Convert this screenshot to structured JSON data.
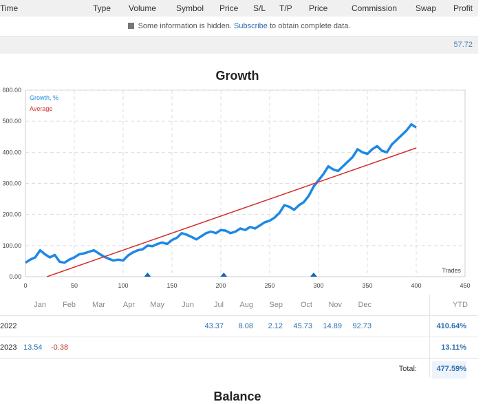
{
  "trades_table": {
    "columns": [
      "Time",
      "Type",
      "Volume",
      "Symbol",
      "Price",
      "S/L",
      "T/P",
      "Price",
      "Commission",
      "Swap",
      "Profit"
    ],
    "notice_prefix": "Some information is hidden.",
    "notice_link": "Subscribe",
    "notice_suffix": "to obtain complete data.",
    "total_profit": "57.72"
  },
  "growth": {
    "title": "Growth",
    "chart_data": {
      "type": "line",
      "xlabel": "Trades",
      "ylabel": "",
      "xlim": [
        0,
        450
      ],
      "ylim": [
        0,
        600
      ],
      "x_ticks": [
        "0",
        "50",
        "100",
        "150",
        "200",
        "250",
        "300",
        "350",
        "400",
        "450"
      ],
      "y_ticks": [
        "0.00",
        "100.00",
        "200.00",
        "300.00",
        "400.00",
        "500.00",
        "600.00"
      ],
      "grid": true,
      "legend_placement": "top-left",
      "series": [
        {
          "name": "Growth, %",
          "color": "#1e88e5",
          "x": [
            0,
            5,
            10,
            15,
            20,
            25,
            30,
            35,
            40,
            45,
            50,
            55,
            60,
            65,
            70,
            75,
            80,
            85,
            90,
            95,
            100,
            105,
            110,
            115,
            120,
            125,
            130,
            135,
            140,
            145,
            150,
            155,
            160,
            165,
            170,
            175,
            180,
            185,
            190,
            195,
            200,
            205,
            210,
            215,
            220,
            225,
            230,
            235,
            240,
            245,
            250,
            255,
            260,
            265,
            270,
            275,
            280,
            285,
            290,
            295,
            300,
            305,
            310,
            315,
            320,
            325,
            330,
            335,
            340,
            345,
            350,
            355,
            360,
            365,
            370,
            375,
            380,
            385,
            390,
            395,
            400
          ],
          "y": [
            45,
            55,
            62,
            85,
            72,
            62,
            70,
            48,
            45,
            55,
            62,
            72,
            75,
            80,
            85,
            75,
            65,
            58,
            52,
            55,
            52,
            68,
            78,
            85,
            88,
            100,
            98,
            105,
            110,
            105,
            118,
            125,
            140,
            135,
            128,
            120,
            130,
            140,
            145,
            140,
            150,
            148,
            140,
            145,
            155,
            150,
            160,
            155,
            165,
            175,
            180,
            190,
            205,
            230,
            225,
            215,
            230,
            240,
            260,
            290,
            310,
            330,
            355,
            345,
            340,
            355,
            370,
            385,
            410,
            400,
            395,
            410,
            420,
            405,
            400,
            425,
            440,
            455,
            470,
            490,
            480
          ]
        },
        {
          "name": "Average",
          "color": "#d32f2f",
          "x": [
            22,
            400
          ],
          "y": [
            0,
            414
          ]
        }
      ],
      "markers_x": [
        125,
        203,
        295
      ]
    }
  },
  "monthly": {
    "months": [
      "Jan",
      "Feb",
      "Mar",
      "Apr",
      "May",
      "Jun",
      "Jul",
      "Aug",
      "Sep",
      "Oct",
      "Nov",
      "Dec"
    ],
    "ytd_label": "YTD",
    "rows": [
      {
        "year": "2022",
        "values": [
          "",
          "",
          "",
          "",
          "",
          "",
          "43.37",
          "8.08",
          "2.12",
          "45.73",
          "14.89",
          "92.73"
        ],
        "ytd": "410.64%"
      },
      {
        "year": "2023",
        "values": [
          "13.54",
          "-0.38",
          "",
          "",
          "",
          "",
          "",
          "",
          "",
          "",
          "",
          ""
        ],
        "ytd": "13.11%"
      }
    ],
    "total_label": "Total:",
    "total": "477.59%"
  },
  "next_section_title": "Balance"
}
